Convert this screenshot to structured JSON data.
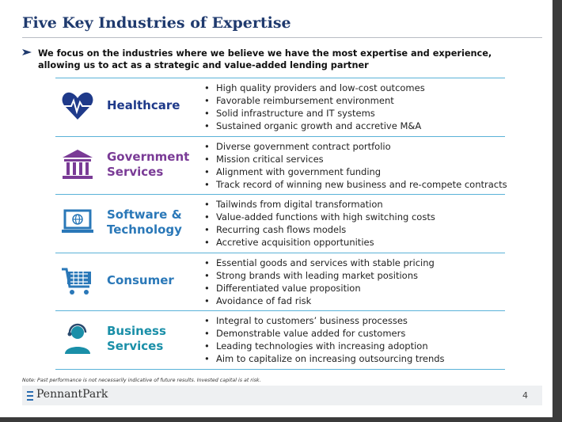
{
  "header": {
    "title": "Five Key Industries of Expertise"
  },
  "intro": "We focus on the industries where we believe we have the most expertise and experience, allowing us to act as a strategic and value-added lending partner",
  "industries": [
    {
      "name": "Healthcare",
      "bullets": [
        "High quality providers and low-cost outcomes",
        "Favorable reimbursement environment",
        "Solid infrastructure and IT systems",
        "Sustained organic growth and accretive M&A"
      ]
    },
    {
      "name": "Government Services",
      "bullets": [
        "Diverse government contract portfolio",
        "Mission critical services",
        "Alignment with government funding",
        "Track record of winning new business and re-compete contracts"
      ]
    },
    {
      "name": "Software & Technology",
      "bullets": [
        "Tailwinds from digital transformation",
        "Value-added functions with high switching costs",
        "Recurring cash flows models",
        "Accretive acquisition opportunities"
      ]
    },
    {
      "name": "Consumer",
      "bullets": [
        "Essential goods and services with stable pricing",
        "Strong brands with leading market positions",
        "Differentiated value proposition",
        "Avoidance of fad risk"
      ]
    },
    {
      "name": "Business Services",
      "bullets": [
        "Integral to customers’ business processes",
        "Demonstrable value added for customers",
        "Leading technologies with increasing adoption",
        "Aim to capitalize on increasing outsourcing trends"
      ]
    }
  ],
  "footer": {
    "note": "Note: Past performance is not necessarily indicative of future results. Invested capital is at risk.",
    "logo": "PennantPark",
    "page": "4"
  }
}
